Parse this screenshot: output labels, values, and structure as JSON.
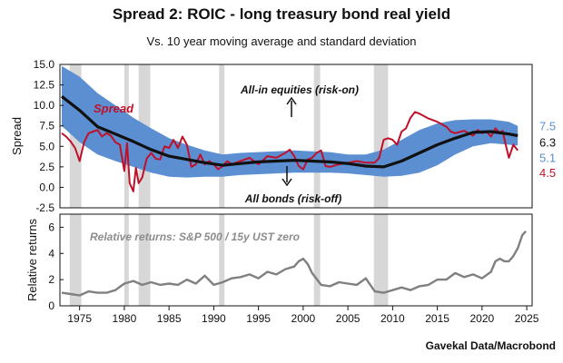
{
  "title": "Spread 2: ROIC - long treasury bond real yield",
  "subtitle": "Vs. 10 year moving average and standard deviation",
  "source": "Gavekal Data/Macrobond",
  "colors": {
    "band": "#5b8fd1",
    "spread": "#c0102a",
    "average": "#111111",
    "relative": "#808080",
    "recession": "#d7d7d7"
  },
  "chart_data": [
    {
      "type": "line",
      "panel": "top",
      "ylabel": "Spread",
      "ylim": [
        -2.5,
        15.0
      ],
      "yticks": [
        "15.0",
        "12.5",
        "10.0",
        "7.5",
        "5.0",
        "2.5",
        "0.0",
        "-2.5"
      ],
      "ytick_values": [
        15.0,
        12.5,
        10.0,
        7.5,
        5.0,
        2.5,
        0.0,
        -2.5
      ],
      "xlim": [
        1972.8,
        2025.6
      ],
      "recession_shading": [
        [
          1973.9,
          1975.2
        ],
        [
          1980.0,
          1980.5
        ],
        [
          1981.6,
          1982.9
        ],
        [
          1990.6,
          1991.2
        ],
        [
          2001.2,
          2001.9
        ],
        [
          2007.9,
          2009.5
        ]
      ],
      "annotations": {
        "risk_on": "All-in equities (risk-on)",
        "risk_off": "All bonds (risk-off)",
        "spread_label": "Spread"
      },
      "right_values": {
        "upper_band": "7.5",
        "average": "6.3",
        "lower_band": "5.1",
        "spread_last": "4.5"
      },
      "series": [
        {
          "name": "Spread",
          "x": [
            1973.0,
            1973.5,
            1974.0,
            1974.5,
            1975.0,
            1975.5,
            1976.0,
            1976.5,
            1977.0,
            1977.5,
            1978.0,
            1978.5,
            1979.0,
            1979.5,
            1980.0,
            1980.3,
            1980.6,
            1981.0,
            1981.3,
            1981.6,
            1982.0,
            1982.5,
            1983.0,
            1983.5,
            1984.0,
            1984.5,
            1985.0,
            1985.5,
            1986.0,
            1986.5,
            1987.0,
            1987.5,
            1988.0,
            1988.5,
            1989.0,
            1989.5,
            1990.0,
            1990.5,
            1991.0,
            1991.5,
            1992.0,
            1993.0,
            1994.0,
            1995.0,
            1996.0,
            1997.0,
            1998.0,
            1998.5,
            1999.0,
            1999.5,
            2000.0,
            2000.5,
            2001.0,
            2001.5,
            2002.0,
            2002.5,
            2003.0,
            2004.0,
            2005.0,
            2006.0,
            2007.0,
            2008.0,
            2008.5,
            2009.0,
            2009.5,
            2010.0,
            2010.5,
            2011.0,
            2011.5,
            2012.0,
            2012.5,
            2013.0,
            2014.0,
            2015.0,
            2016.0,
            2016.5,
            2017.0,
            2018.0,
            2019.0,
            2019.5,
            2020.0,
            2020.5,
            2021.0,
            2021.5,
            2022.0,
            2022.3,
            2022.6,
            2023.0,
            2023.5,
            2024.0
          ],
          "values": [
            6.6,
            6.2,
            5.6,
            4.8,
            3.2,
            5.5,
            6.6,
            6.8,
            7.0,
            6.2,
            6.6,
            6.3,
            5.5,
            5.2,
            2.0,
            5.4,
            0.5,
            -0.5,
            2.4,
            0.5,
            1.2,
            3.5,
            4.2,
            3.5,
            3.4,
            5.0,
            4.8,
            5.8,
            4.8,
            6.2,
            5.2,
            2.5,
            2.8,
            4.0,
            2.8,
            3.2,
            2.8,
            2.2,
            2.6,
            3.2,
            2.8,
            3.2,
            3.6,
            2.8,
            3.8,
            3.6,
            4.2,
            4.6,
            3.8,
            2.6,
            2.2,
            3.4,
            3.6,
            4.2,
            4.5,
            2.6,
            2.5,
            2.8,
            3.0,
            3.2,
            3.0,
            3.0,
            3.6,
            5.8,
            6.0,
            5.8,
            5.2,
            6.8,
            7.2,
            8.5,
            9.2,
            9.0,
            8.4,
            8.0,
            7.4,
            6.8,
            6.6,
            6.9,
            6.3,
            7.0,
            6.6,
            6.8,
            6.2,
            7.2,
            6.6,
            6.9,
            5.4,
            3.6,
            5.2,
            4.5
          ]
        },
        {
          "name": "10y moving average",
          "x": [
            1973.0,
            1975.0,
            1977.0,
            1979.0,
            1981.0,
            1983.0,
            1985.0,
            1987.0,
            1989.0,
            1991.0,
            1993.0,
            1995.0,
            1997.0,
            1999.0,
            2001.0,
            2003.0,
            2005.0,
            2007.0,
            2009.0,
            2011.0,
            2013.0,
            2015.0,
            2017.0,
            2019.0,
            2021.0,
            2023.0,
            2024.0
          ],
          "values": [
            11.1,
            9.4,
            7.4,
            6.5,
            5.6,
            4.6,
            3.8,
            3.4,
            3.0,
            2.7,
            2.9,
            3.1,
            3.2,
            3.3,
            3.2,
            3.1,
            2.9,
            2.6,
            2.5,
            3.2,
            4.2,
            5.2,
            6.0,
            6.7,
            6.8,
            6.5,
            6.3
          ]
        },
        {
          "name": "Upper band",
          "x": [
            1973.0,
            1975.0,
            1977.0,
            1979.0,
            1981.0,
            1983.0,
            1985.0,
            1987.0,
            1989.0,
            1991.0,
            1993.0,
            1995.0,
            1997.0,
            1999.0,
            2001.0,
            2003.0,
            2005.0,
            2007.0,
            2009.0,
            2011.0,
            2013.0,
            2015.0,
            2017.0,
            2019.0,
            2021.0,
            2023.0,
            2024.0
          ],
          "values": [
            14.8,
            13.5,
            11.5,
            10.0,
            8.5,
            7.2,
            6.0,
            5.2,
            4.5,
            4.0,
            4.2,
            4.3,
            4.4,
            4.5,
            4.4,
            4.3,
            4.0,
            4.0,
            4.6,
            5.8,
            7.0,
            7.8,
            8.2,
            8.3,
            8.3,
            8.0,
            7.5
          ]
        },
        {
          "name": "Lower band",
          "x": [
            1973.0,
            1975.0,
            1977.0,
            1979.0,
            1981.0,
            1983.0,
            1985.0,
            1987.0,
            1989.0,
            1991.0,
            1993.0,
            1995.0,
            1997.0,
            1999.0,
            2001.0,
            2003.0,
            2005.0,
            2007.0,
            2009.0,
            2011.0,
            2013.0,
            2015.0,
            2017.0,
            2019.0,
            2021.0,
            2023.0,
            2024.0
          ],
          "values": [
            7.5,
            5.5,
            4.0,
            3.2,
            2.5,
            1.8,
            1.3,
            1.2,
            1.3,
            1.3,
            1.5,
            1.6,
            1.7,
            1.8,
            1.8,
            1.8,
            1.7,
            1.5,
            1.3,
            1.4,
            1.8,
            2.7,
            4.0,
            5.0,
            5.4,
            5.2,
            5.1
          ]
        }
      ]
    },
    {
      "type": "line",
      "panel": "bottom",
      "ylabel": "Relative returns",
      "ylim": [
        0,
        7
      ],
      "yticks": [
        "6",
        "4",
        "2",
        "0"
      ],
      "ytick_values": [
        6,
        4,
        2,
        0
      ],
      "xlim": [
        1972.8,
        2025.6
      ],
      "xticks": [
        "1975",
        "1980",
        "1985",
        "1990",
        "1995",
        "2000",
        "2005",
        "2010",
        "2015",
        "2020",
        "2025"
      ],
      "xtick_values": [
        1975,
        1980,
        1985,
        1990,
        1995,
        2000,
        2005,
        2010,
        2015,
        2020,
        2025
      ],
      "label": "Relative returns: S&P 500 / 15y UST zero",
      "series": [
        {
          "name": "Relative returns: S&P 500 / 15y UST zero",
          "x": [
            1973.0,
            1974.0,
            1975.0,
            1976.0,
            1977.0,
            1978.0,
            1979.0,
            1980.0,
            1981.0,
            1982.0,
            1983.0,
            1984.0,
            1985.0,
            1986.0,
            1987.0,
            1988.0,
            1989.0,
            1990.0,
            1991.0,
            1992.0,
            1993.0,
            1994.0,
            1995.0,
            1996.0,
            1997.0,
            1998.0,
            1999.0,
            1999.5,
            2000.0,
            2000.5,
            2001.0,
            2002.0,
            2003.0,
            2004.0,
            2005.0,
            2006.0,
            2007.0,
            2008.0,
            2009.0,
            2010.0,
            2011.0,
            2012.0,
            2013.0,
            2014.0,
            2015.0,
            2016.0,
            2017.0,
            2018.0,
            2019.0,
            2020.0,
            2021.0,
            2021.5,
            2022.0,
            2022.5,
            2023.0,
            2023.5,
            2024.0,
            2024.5,
            2024.9
          ],
          "values": [
            1.0,
            0.9,
            0.8,
            1.1,
            1.0,
            1.0,
            1.2,
            1.7,
            1.9,
            1.6,
            1.8,
            1.6,
            1.7,
            1.6,
            2.0,
            1.7,
            2.3,
            1.6,
            1.8,
            2.1,
            2.2,
            2.4,
            2.1,
            2.6,
            2.4,
            2.8,
            3.0,
            3.4,
            3.6,
            3.2,
            2.5,
            1.6,
            1.5,
            1.8,
            1.7,
            1.6,
            2.1,
            1.1,
            1.0,
            1.2,
            1.4,
            1.2,
            1.5,
            1.6,
            2.0,
            2.0,
            2.5,
            2.2,
            2.4,
            2.1,
            2.6,
            3.4,
            3.6,
            3.4,
            3.4,
            3.8,
            4.4,
            5.4,
            5.7
          ]
        }
      ]
    }
  ]
}
